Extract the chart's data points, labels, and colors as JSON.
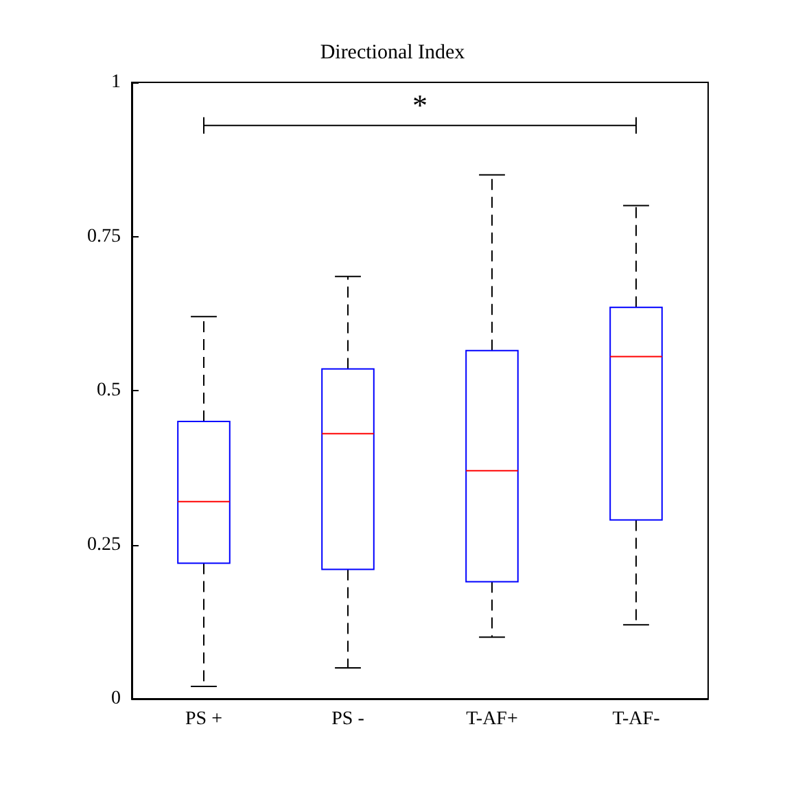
{
  "chart_data": {
    "type": "box",
    "title": "Directional Index",
    "categories": [
      "PS +",
      "PS -",
      "T-AF+",
      "T-AF-"
    ],
    "series": [
      {
        "color": "#0000ff",
        "boxes": [
          {
            "low": 0.02,
            "q1": 0.22,
            "median": 0.32,
            "q3": 0.45,
            "high": 0.62
          },
          {
            "low": 0.05,
            "q1": 0.21,
            "median": 0.43,
            "q3": 0.535,
            "high": 0.685
          },
          {
            "low": 0.1,
            "q1": 0.19,
            "median": 0.37,
            "q3": 0.565,
            "high": 0.85
          },
          {
            "low": 0.12,
            "q1": 0.29,
            "median": 0.555,
            "q3": 0.635,
            "high": 0.8
          }
        ]
      }
    ],
    "ylim": [
      0,
      1
    ],
    "yticks": [
      0,
      0.25,
      0.5,
      0.75,
      1
    ],
    "grid": false,
    "annotations": [
      "*"
    ]
  }
}
